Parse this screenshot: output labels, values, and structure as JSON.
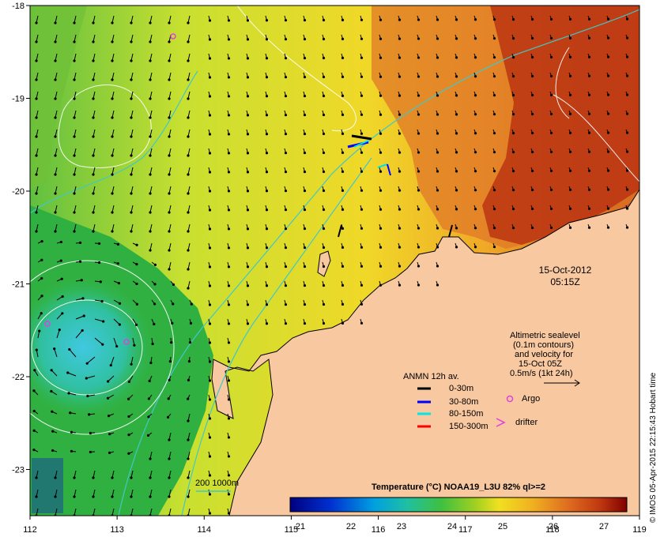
{
  "map": {
    "x_ticks": [
      "112",
      "113",
      "114",
      "115",
      "116",
      "117",
      "118",
      "119"
    ],
    "y_ticks": [
      "-18",
      "-19",
      "-20",
      "-21",
      "-22",
      "-23"
    ],
    "date": "15-Oct-2012",
    "time": "05:15Z"
  },
  "altimetry": {
    "line1": "Altimetric sealevel",
    "line2": "(0.1m contours)",
    "line3": "and velocity for",
    "line4": "15-Oct 05Z",
    "line5": "0.5m/s (1kt 24h)"
  },
  "legend": {
    "title": "ANMN 12h av.",
    "items": [
      {
        "label": "0-30m",
        "color": "#000000"
      },
      {
        "label": "30-80m",
        "color": "#0000ff"
      },
      {
        "label": "80-150m",
        "color": "#00e5e5"
      },
      {
        "label": "150-300m",
        "color": "#ff0000"
      }
    ],
    "argo": "Argo",
    "drifter": "drifter"
  },
  "isobath_label": "200  1000m",
  "colorbar": {
    "title": "Temperature (°C) NOAA19_L3U 82% ql>=2",
    "ticks": [
      "21",
      "22",
      "23",
      "24",
      "25",
      "26",
      "27"
    ]
  },
  "credit": "© IMOS 05-Apr-2015 22:15:43 Hobart time",
  "colors": {
    "land": "#f8c8a0",
    "warm": "#a82010",
    "mid": "#f4d020",
    "cool": "#30b830",
    "argo": "#e040e0",
    "isobath": "#40c8c8"
  }
}
